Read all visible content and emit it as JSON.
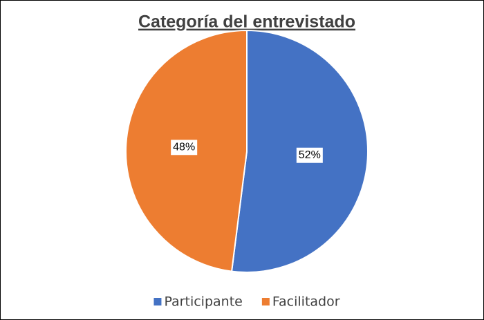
{
  "chart_data": {
    "type": "pie",
    "title": "Categoría del entrevistado",
    "categories": [
      "Participante",
      "Facilitador"
    ],
    "values": [
      52,
      48
    ],
    "value_labels": [
      "52%",
      "48%"
    ],
    "colors": [
      "#4472c4",
      "#ed7d31"
    ],
    "legend": "bottom"
  }
}
